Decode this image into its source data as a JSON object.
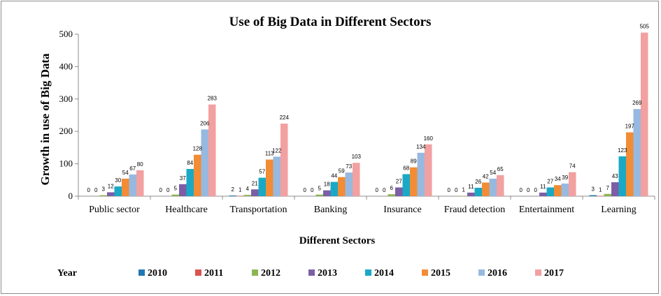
{
  "chart_data": {
    "type": "bar",
    "title": "Use of Big Data in Different Sectors",
    "xlabel": "Different Sectors",
    "ylabel": "Growth in use of Big Data",
    "legend_label": "Year",
    "legend_position": "bottom",
    "ylim": [
      0,
      500
    ],
    "yticks": [
      0,
      100,
      200,
      300,
      400,
      500
    ],
    "grid": false,
    "categories": [
      "Public sector",
      "Healthcare",
      "Transportation",
      "Banking",
      "Insurance",
      "Fraud detection",
      "Entertainment",
      "Learning"
    ],
    "series": [
      {
        "name": "2010",
        "color": "#1f77b4",
        "values": [
          0,
          0,
          2,
          0,
          0,
          0,
          0,
          3
        ]
      },
      {
        "name": "2011",
        "color": "#d9534f",
        "values": [
          0,
          0,
          1,
          0,
          0,
          0,
          0,
          1
        ]
      },
      {
        "name": "2012",
        "color": "#8db552",
        "values": [
          3,
          5,
          4,
          5,
          6,
          1,
          0,
          7
        ]
      },
      {
        "name": "2013",
        "color": "#7b5ea6",
        "values": [
          12,
          37,
          21,
          18,
          27,
          11,
          11,
          43
        ]
      },
      {
        "name": "2014",
        "color": "#19a9c6",
        "values": [
          30,
          84,
          57,
          44,
          68,
          26,
          27,
          123
        ]
      },
      {
        "name": "2015",
        "color": "#f28c35",
        "values": [
          54,
          128,
          113,
          59,
          89,
          42,
          34,
          197
        ]
      },
      {
        "name": "2016",
        "color": "#97b9e0",
        "values": [
          67,
          206,
          122,
          73,
          134,
          54,
          39,
          269
        ]
      },
      {
        "name": "2017",
        "color": "#f2a0a0",
        "values": [
          80,
          283,
          224,
          103,
          160,
          65,
          74,
          505
        ]
      }
    ]
  }
}
